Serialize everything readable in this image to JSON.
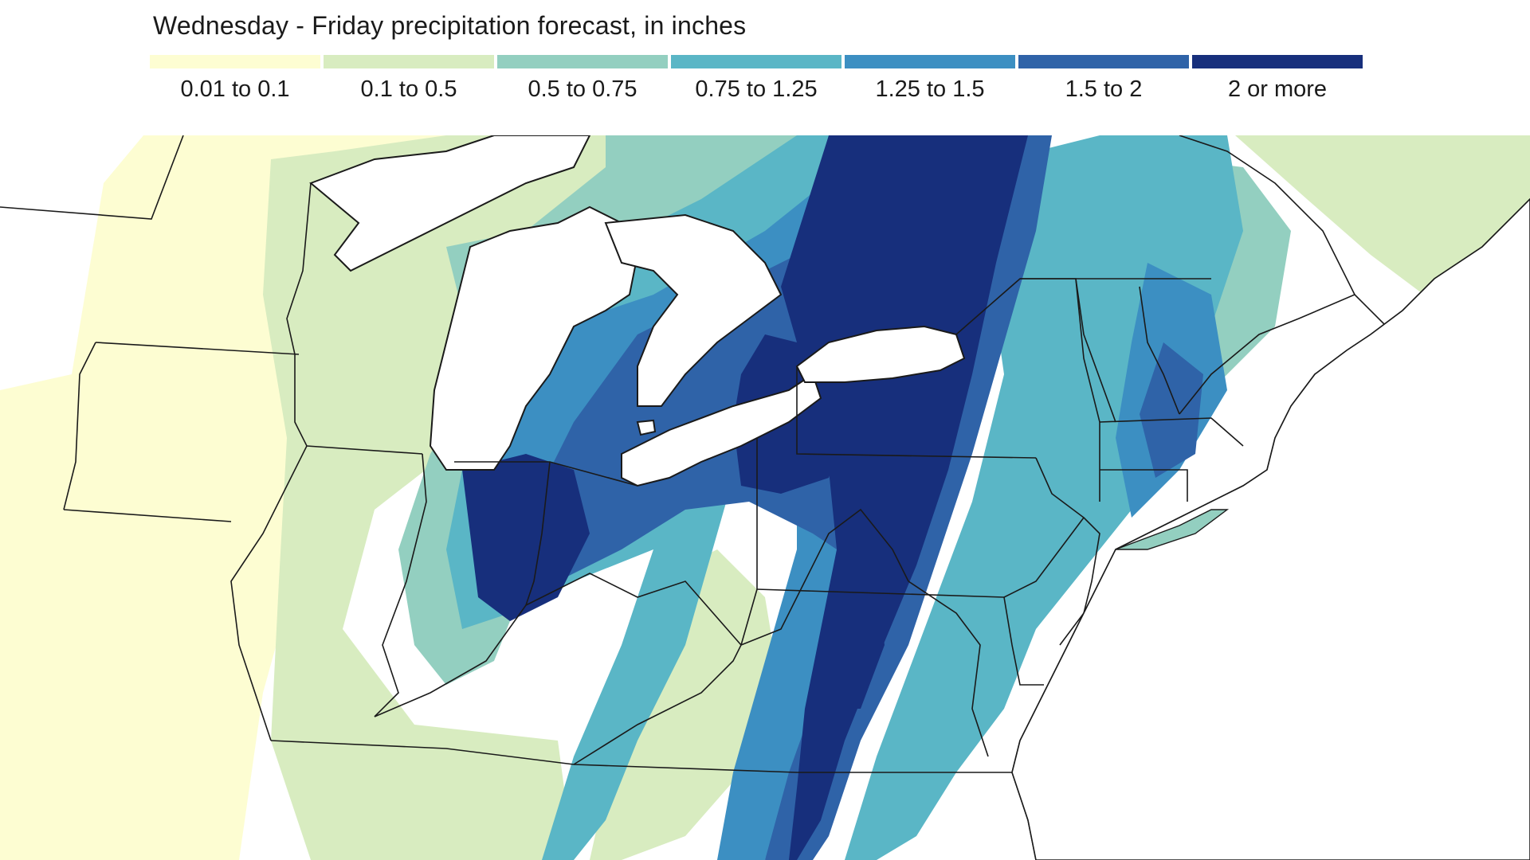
{
  "title": "Wednesday - Friday precipitation forecast, in inches",
  "legend": [
    {
      "label": "0.01 to 0.1",
      "color": "#fdfdd2"
    },
    {
      "label": "0.1 to 0.5",
      "color": "#d8ecc0"
    },
    {
      "label": "0.5 to 0.75",
      "color": "#93cfc0"
    },
    {
      "label": "0.75 to 1.25",
      "color": "#5ab6c6"
    },
    {
      "label": "1.25 to 1.5",
      "color": "#3c8fc2"
    },
    {
      "label": "1.5 to 2",
      "color": "#2f63a8"
    },
    {
      "label": "2 or more",
      "color": "#172f7c"
    }
  ],
  "map": {
    "water_color": "#ffffff",
    "border_color": "#1a1a1a"
  }
}
